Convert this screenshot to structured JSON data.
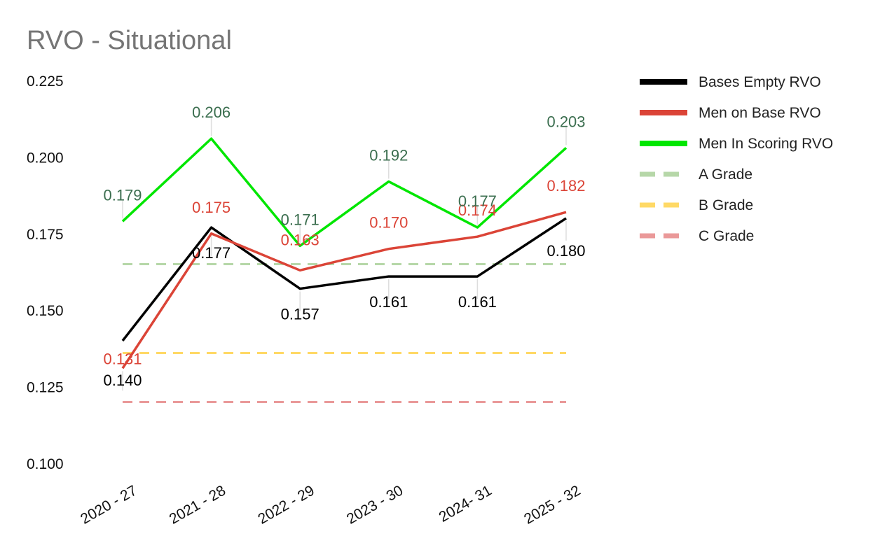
{
  "chart_data": {
    "type": "line",
    "title": "RVO - Situational",
    "xlabel": "",
    "ylabel": "",
    "categories": [
      "2020 - 27",
      "2021 - 28",
      "2022 - 29",
      "2023 - 30",
      "2024- 31",
      "2025 - 32"
    ],
    "ylim": [
      0.1,
      0.225
    ],
    "yticks": [
      "0.100",
      "0.125",
      "0.150",
      "0.175",
      "0.200",
      "0.225"
    ],
    "grid": false,
    "legend_position": "right",
    "series": [
      {
        "name": "Bases Empty RVO",
        "values": [
          0.14,
          0.177,
          0.157,
          0.161,
          0.161,
          0.18
        ],
        "labels": [
          "0.140",
          "0.177",
          "0.157",
          "0.161",
          "0.161",
          "0.180"
        ],
        "color": "#000000",
        "label_color": "#000000",
        "style": "solid"
      },
      {
        "name": "Men on Base RVO",
        "values": [
          0.131,
          0.175,
          0.163,
          0.17,
          0.174,
          0.182
        ],
        "labels": [
          "0.131",
          "0.175",
          "0.163",
          "0.170",
          "0.174",
          "0.182"
        ],
        "color": "#db4437",
        "label_color": "#db4437",
        "style": "solid"
      },
      {
        "name": "Men In Scoring RVO",
        "values": [
          0.179,
          0.206,
          0.171,
          0.192,
          0.177,
          0.203
        ],
        "labels": [
          "0.179",
          "0.206",
          "0.171",
          "0.192",
          "0.177",
          "0.203"
        ],
        "color": "#00e600",
        "label_color": "#3b6e4f",
        "style": "solid"
      },
      {
        "name": "A Grade",
        "values": [
          0.165,
          0.165,
          0.165,
          0.165,
          0.165,
          0.165
        ],
        "color": "#b6d7a8",
        "style": "dashed"
      },
      {
        "name": "B Grade",
        "values": [
          0.136,
          0.136,
          0.136,
          0.136,
          0.136,
          0.136
        ],
        "color": "#ffd966",
        "style": "dashed"
      },
      {
        "name": "C Grade",
        "values": [
          0.12,
          0.12,
          0.12,
          0.12,
          0.12,
          0.12
        ],
        "color": "#ea9999",
        "style": "dashed"
      }
    ]
  }
}
